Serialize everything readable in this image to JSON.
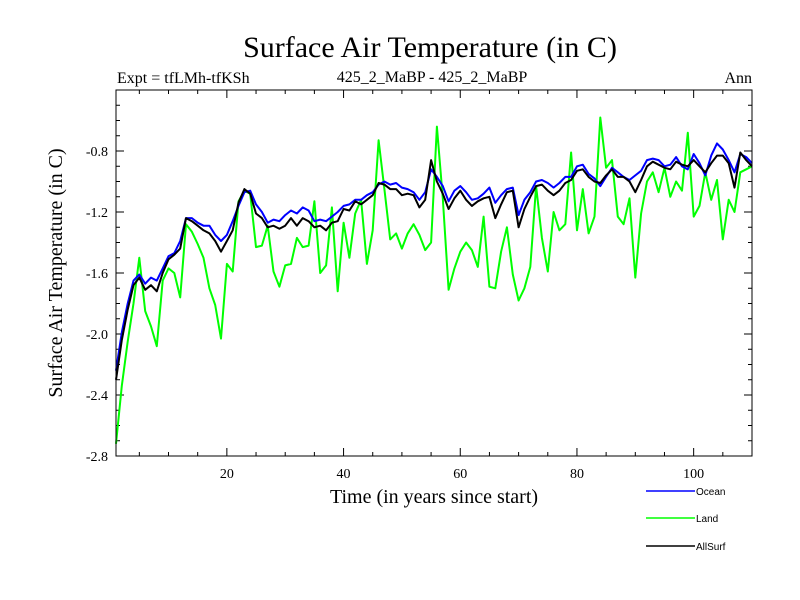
{
  "chart_data": {
    "type": "line",
    "title": "Surface Air Temperature (in C)",
    "subtitle_left": "Expt = tfLMh-tfKSh",
    "subtitle_center": "425_2_MaBP - 425_2_MaBP",
    "subtitle_right": "Ann",
    "xlabel": "Time (in years since start)",
    "ylabel": "Surface Air Temperature (in C)",
    "xlim": [
      1,
      110
    ],
    "ylim": [
      -2.8,
      -0.4
    ],
    "xticks": [
      20,
      40,
      60,
      80,
      100
    ],
    "yticks": [
      -2.8,
      -2.4,
      -2.0,
      -1.6,
      -1.2,
      -0.8
    ],
    "ytick_labels": [
      "-2.8",
      "-2.4",
      "-2.0",
      "-1.6",
      "-1.2",
      "-0.8"
    ],
    "legend_position": "bottom-right",
    "series": [
      {
        "name": "Ocean",
        "color": "#0000ff",
        "values": [
          -2.24,
          -1.99,
          -1.8,
          -1.65,
          -1.61,
          -1.67,
          -1.63,
          -1.65,
          -1.57,
          -1.49,
          -1.47,
          -1.39,
          -1.24,
          -1.24,
          -1.27,
          -1.29,
          -1.29,
          -1.35,
          -1.39,
          -1.35,
          -1.26,
          -1.16,
          -1.07,
          -1.06,
          -1.15,
          -1.2,
          -1.27,
          -1.25,
          -1.26,
          -1.22,
          -1.19,
          -1.21,
          -1.17,
          -1.19,
          -1.26,
          -1.25,
          -1.26,
          -1.23,
          -1.2,
          -1.16,
          -1.15,
          -1.12,
          -1.12,
          -1.09,
          -1.07,
          -1.02,
          -1.0,
          -1.02,
          -1.01,
          -1.04,
          -1.05,
          -1.07,
          -1.12,
          -1.07,
          -0.92,
          -0.97,
          -1.03,
          -1.13,
          -1.06,
          -1.03,
          -1.07,
          -1.12,
          -1.11,
          -1.08,
          -1.04,
          -1.14,
          -1.09,
          -1.05,
          -1.04,
          -1.22,
          -1.12,
          -1.07,
          -1.0,
          -0.99,
          -1.01,
          -1.04,
          -1.01,
          -0.97,
          -0.97,
          -0.9,
          -0.89,
          -0.95,
          -0.98,
          -1.03,
          -0.97,
          -0.91,
          -0.94,
          -0.97,
          -0.99,
          -0.96,
          -0.93,
          -0.86,
          -0.85,
          -0.86,
          -0.9,
          -0.89,
          -0.84,
          -0.9,
          -0.92,
          -0.82,
          -0.88,
          -0.96,
          -0.83,
          -0.75,
          -0.79,
          -0.86,
          -0.94,
          -0.82,
          -0.84,
          -0.88
        ]
      },
      {
        "name": "Land",
        "color": "#00ff00",
        "values": [
          -2.72,
          -2.34,
          -2.05,
          -1.8,
          -1.5,
          -1.85,
          -1.95,
          -2.08,
          -1.65,
          -1.57,
          -1.6,
          -1.76,
          -1.28,
          -1.33,
          -1.41,
          -1.5,
          -1.7,
          -1.81,
          -2.03,
          -1.54,
          -1.59,
          -1.13,
          -1.06,
          -1.08,
          -1.43,
          -1.42,
          -1.29,
          -1.59,
          -1.69,
          -1.55,
          -1.54,
          -1.37,
          -1.43,
          -1.42,
          -1.13,
          -1.6,
          -1.55,
          -1.17,
          -1.72,
          -1.27,
          -1.5,
          -1.21,
          -1.12,
          -1.54,
          -1.32,
          -0.73,
          -1.05,
          -1.38,
          -1.34,
          -1.44,
          -1.34,
          -1.28,
          -1.35,
          -1.45,
          -1.4,
          -0.64,
          -1.11,
          -1.71,
          -1.57,
          -1.46,
          -1.4,
          -1.45,
          -1.56,
          -1.23,
          -1.69,
          -1.7,
          -1.46,
          -1.3,
          -1.61,
          -1.78,
          -1.7,
          -1.56,
          -1.03,
          -1.37,
          -1.59,
          -1.2,
          -1.32,
          -1.28,
          -0.81,
          -1.32,
          -1.05,
          -1.34,
          -1.23,
          -0.58,
          -0.91,
          -0.86,
          -1.23,
          -1.28,
          -1.11,
          -1.63,
          -1.21,
          -1.0,
          -0.94,
          -1.07,
          -0.91,
          -1.1,
          -1.0,
          -1.06,
          -0.68,
          -1.23,
          -1.16,
          -0.94,
          -1.12,
          -0.99,
          -1.38,
          -1.12,
          -1.2,
          -0.94,
          -0.92,
          -0.9
        ]
      },
      {
        "name": "AllSurf",
        "color": "#000000",
        "values": [
          -2.3,
          -2.04,
          -1.84,
          -1.68,
          -1.63,
          -1.71,
          -1.68,
          -1.72,
          -1.6,
          -1.51,
          -1.48,
          -1.44,
          -1.24,
          -1.26,
          -1.29,
          -1.32,
          -1.34,
          -1.39,
          -1.46,
          -1.39,
          -1.32,
          -1.14,
          -1.05,
          -1.08,
          -1.21,
          -1.24,
          -1.3,
          -1.29,
          -1.31,
          -1.29,
          -1.24,
          -1.29,
          -1.24,
          -1.26,
          -1.3,
          -1.29,
          -1.32,
          -1.27,
          -1.26,
          -1.18,
          -1.19,
          -1.13,
          -1.15,
          -1.12,
          -1.09,
          -1.01,
          -1.02,
          -1.05,
          -1.05,
          -1.09,
          -1.08,
          -1.09,
          -1.17,
          -1.12,
          -0.86,
          -1.0,
          -1.08,
          -1.18,
          -1.11,
          -1.06,
          -1.12,
          -1.16,
          -1.13,
          -1.11,
          -1.1,
          -1.24,
          -1.15,
          -1.07,
          -1.06,
          -1.3,
          -1.18,
          -1.1,
          -1.03,
          -1.02,
          -1.06,
          -1.09,
          -1.06,
          -1.01,
          -0.99,
          -0.93,
          -0.92,
          -0.97,
          -1.0,
          -1.01,
          -0.96,
          -0.92,
          -0.97,
          -0.97,
          -1.0,
          -1.07,
          -0.99,
          -0.9,
          -0.87,
          -0.89,
          -0.91,
          -0.92,
          -0.87,
          -0.89,
          -0.9,
          -0.86,
          -0.9,
          -0.94,
          -0.88,
          -0.83,
          -0.83,
          -0.88,
          -1.04,
          -0.81,
          -0.86,
          -0.9
        ]
      }
    ]
  }
}
